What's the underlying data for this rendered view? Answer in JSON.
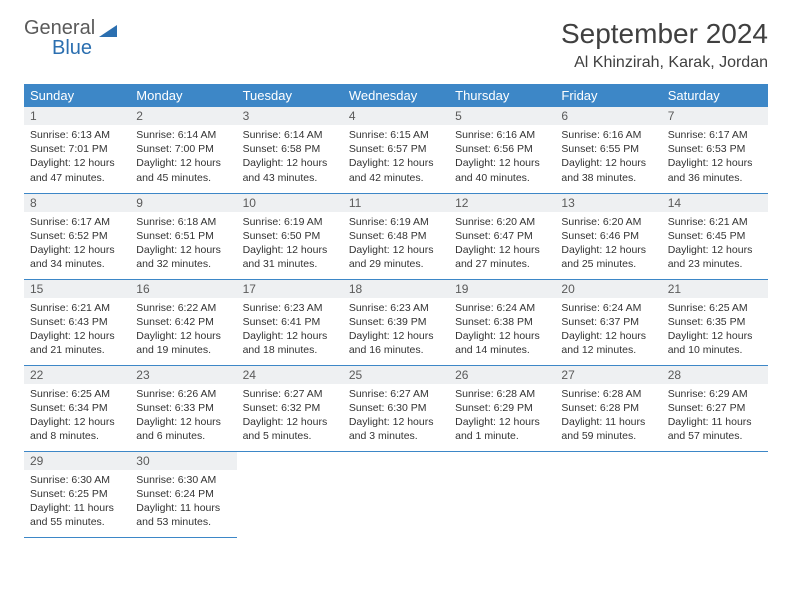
{
  "logo": {
    "line1": "General",
    "line2": "Blue"
  },
  "title": "September 2024",
  "location": "Al Khinzirah, Karak, Jordan",
  "colors": {
    "header_bg": "#3d87c7",
    "header_text": "#ffffff",
    "daynum_bg": "#eef0f2",
    "rule": "#3d87c7",
    "logo_gray": "#5a5a5a",
    "logo_blue": "#2b6fb0"
  },
  "day_names": [
    "Sunday",
    "Monday",
    "Tuesday",
    "Wednesday",
    "Thursday",
    "Friday",
    "Saturday"
  ],
  "weeks": [
    [
      {
        "n": "1",
        "sr": "Sunrise: 6:13 AM",
        "ss": "Sunset: 7:01 PM",
        "dl": "Daylight: 12 hours and 47 minutes."
      },
      {
        "n": "2",
        "sr": "Sunrise: 6:14 AM",
        "ss": "Sunset: 7:00 PM",
        "dl": "Daylight: 12 hours and 45 minutes."
      },
      {
        "n": "3",
        "sr": "Sunrise: 6:14 AM",
        "ss": "Sunset: 6:58 PM",
        "dl": "Daylight: 12 hours and 43 minutes."
      },
      {
        "n": "4",
        "sr": "Sunrise: 6:15 AM",
        "ss": "Sunset: 6:57 PM",
        "dl": "Daylight: 12 hours and 42 minutes."
      },
      {
        "n": "5",
        "sr": "Sunrise: 6:16 AM",
        "ss": "Sunset: 6:56 PM",
        "dl": "Daylight: 12 hours and 40 minutes."
      },
      {
        "n": "6",
        "sr": "Sunrise: 6:16 AM",
        "ss": "Sunset: 6:55 PM",
        "dl": "Daylight: 12 hours and 38 minutes."
      },
      {
        "n": "7",
        "sr": "Sunrise: 6:17 AM",
        "ss": "Sunset: 6:53 PM",
        "dl": "Daylight: 12 hours and 36 minutes."
      }
    ],
    [
      {
        "n": "8",
        "sr": "Sunrise: 6:17 AM",
        "ss": "Sunset: 6:52 PM",
        "dl": "Daylight: 12 hours and 34 minutes."
      },
      {
        "n": "9",
        "sr": "Sunrise: 6:18 AM",
        "ss": "Sunset: 6:51 PM",
        "dl": "Daylight: 12 hours and 32 minutes."
      },
      {
        "n": "10",
        "sr": "Sunrise: 6:19 AM",
        "ss": "Sunset: 6:50 PM",
        "dl": "Daylight: 12 hours and 31 minutes."
      },
      {
        "n": "11",
        "sr": "Sunrise: 6:19 AM",
        "ss": "Sunset: 6:48 PM",
        "dl": "Daylight: 12 hours and 29 minutes."
      },
      {
        "n": "12",
        "sr": "Sunrise: 6:20 AM",
        "ss": "Sunset: 6:47 PM",
        "dl": "Daylight: 12 hours and 27 minutes."
      },
      {
        "n": "13",
        "sr": "Sunrise: 6:20 AM",
        "ss": "Sunset: 6:46 PM",
        "dl": "Daylight: 12 hours and 25 minutes."
      },
      {
        "n": "14",
        "sr": "Sunrise: 6:21 AM",
        "ss": "Sunset: 6:45 PM",
        "dl": "Daylight: 12 hours and 23 minutes."
      }
    ],
    [
      {
        "n": "15",
        "sr": "Sunrise: 6:21 AM",
        "ss": "Sunset: 6:43 PM",
        "dl": "Daylight: 12 hours and 21 minutes."
      },
      {
        "n": "16",
        "sr": "Sunrise: 6:22 AM",
        "ss": "Sunset: 6:42 PM",
        "dl": "Daylight: 12 hours and 19 minutes."
      },
      {
        "n": "17",
        "sr": "Sunrise: 6:23 AM",
        "ss": "Sunset: 6:41 PM",
        "dl": "Daylight: 12 hours and 18 minutes."
      },
      {
        "n": "18",
        "sr": "Sunrise: 6:23 AM",
        "ss": "Sunset: 6:39 PM",
        "dl": "Daylight: 12 hours and 16 minutes."
      },
      {
        "n": "19",
        "sr": "Sunrise: 6:24 AM",
        "ss": "Sunset: 6:38 PM",
        "dl": "Daylight: 12 hours and 14 minutes."
      },
      {
        "n": "20",
        "sr": "Sunrise: 6:24 AM",
        "ss": "Sunset: 6:37 PM",
        "dl": "Daylight: 12 hours and 12 minutes."
      },
      {
        "n": "21",
        "sr": "Sunrise: 6:25 AM",
        "ss": "Sunset: 6:35 PM",
        "dl": "Daylight: 12 hours and 10 minutes."
      }
    ],
    [
      {
        "n": "22",
        "sr": "Sunrise: 6:25 AM",
        "ss": "Sunset: 6:34 PM",
        "dl": "Daylight: 12 hours and 8 minutes."
      },
      {
        "n": "23",
        "sr": "Sunrise: 6:26 AM",
        "ss": "Sunset: 6:33 PM",
        "dl": "Daylight: 12 hours and 6 minutes."
      },
      {
        "n": "24",
        "sr": "Sunrise: 6:27 AM",
        "ss": "Sunset: 6:32 PM",
        "dl": "Daylight: 12 hours and 5 minutes."
      },
      {
        "n": "25",
        "sr": "Sunrise: 6:27 AM",
        "ss": "Sunset: 6:30 PM",
        "dl": "Daylight: 12 hours and 3 minutes."
      },
      {
        "n": "26",
        "sr": "Sunrise: 6:28 AM",
        "ss": "Sunset: 6:29 PM",
        "dl": "Daylight: 12 hours and 1 minute."
      },
      {
        "n": "27",
        "sr": "Sunrise: 6:28 AM",
        "ss": "Sunset: 6:28 PM",
        "dl": "Daylight: 11 hours and 59 minutes."
      },
      {
        "n": "28",
        "sr": "Sunrise: 6:29 AM",
        "ss": "Sunset: 6:27 PM",
        "dl": "Daylight: 11 hours and 57 minutes."
      }
    ],
    [
      {
        "n": "29",
        "sr": "Sunrise: 6:30 AM",
        "ss": "Sunset: 6:25 PM",
        "dl": "Daylight: 11 hours and 55 minutes."
      },
      {
        "n": "30",
        "sr": "Sunrise: 6:30 AM",
        "ss": "Sunset: 6:24 PM",
        "dl": "Daylight: 11 hours and 53 minutes."
      },
      null,
      null,
      null,
      null,
      null
    ]
  ]
}
